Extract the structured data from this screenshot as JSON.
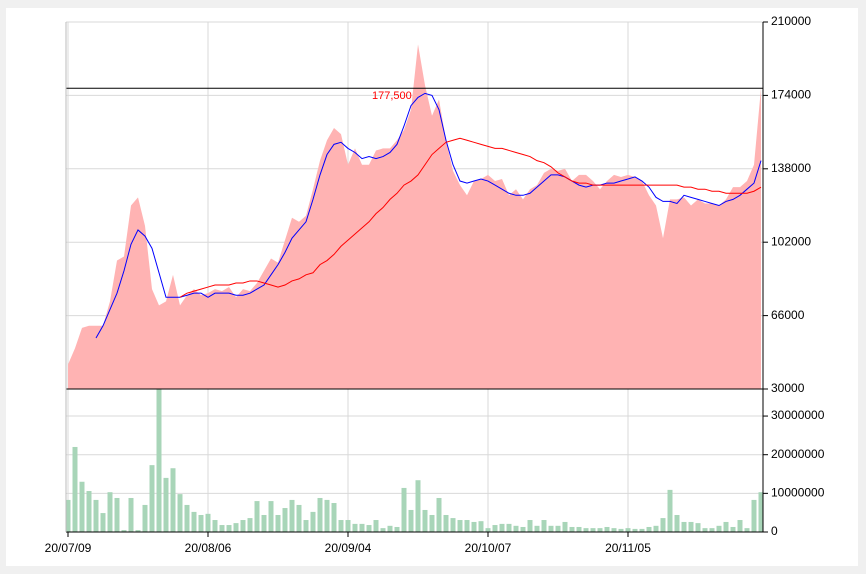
{
  "chart_data": [
    {
      "type": "area",
      "categories": [
        "20/07/09",
        null,
        null,
        null,
        null,
        null,
        null,
        null,
        null,
        null,
        null,
        null,
        null,
        null,
        null,
        null,
        null,
        null,
        null,
        null,
        "20/08/06",
        null,
        null,
        null,
        null,
        null,
        null,
        null,
        null,
        null,
        null,
        null,
        null,
        null,
        null,
        null,
        null,
        null,
        null,
        null,
        "20/09/04",
        null,
        null,
        null,
        null,
        null,
        null,
        null,
        null,
        null,
        null,
        null,
        null,
        null,
        null,
        null,
        null,
        null,
        null,
        null,
        "20/10/07",
        null,
        null,
        null,
        null,
        null,
        null,
        null,
        null,
        null,
        null,
        null,
        null,
        null,
        null,
        null,
        null,
        null,
        null,
        null,
        "20/11/05",
        null,
        null,
        null,
        null,
        null,
        null,
        null,
        null,
        null,
        null,
        null,
        null,
        null,
        null,
        null,
        null,
        null,
        null,
        null
      ],
      "series": [
        {
          "color": "#ffb3b3",
          "values": [
            42000,
            50000,
            60000,
            61000,
            61000,
            61000,
            73000,
            93000,
            95000,
            120000,
            124000,
            110000,
            79000,
            71000,
            73000,
            86000,
            71000,
            76000,
            79000,
            76000,
            77000,
            79000,
            78000,
            80000,
            75000,
            79000,
            78000,
            82000,
            88000,
            94000,
            92000,
            103000,
            114000,
            112000,
            115000,
            128000,
            142000,
            152000,
            158000,
            155000,
            140000,
            148000,
            140000,
            140000,
            147000,
            148000,
            148000,
            152000,
            157000,
            167000,
            199000,
            179000,
            164000,
            172000,
            152000,
            137000,
            130000,
            125000,
            132000,
            133000,
            135000,
            132000,
            133000,
            125000,
            128000,
            123000,
            128000,
            130000,
            136000,
            138000,
            137000,
            138000,
            132000,
            135000,
            135000,
            132000,
            128000,
            132000,
            135000,
            134000,
            135000,
            134000,
            132000,
            125000,
            120000,
            104000,
            123000,
            123000,
            124000,
            120000,
            123000,
            121000,
            121000,
            120000,
            123000,
            129000,
            129000,
            132000,
            140000,
            177500
          ]
        },
        {
          "color": "#0000ff",
          "values": [
            null,
            null,
            null,
            null,
            55000,
            61000,
            69000,
            77000,
            88000,
            101000,
            108000,
            105000,
            99000,
            87000,
            75000,
            75000,
            75000,
            76000,
            77000,
            77000,
            75000,
            77000,
            77000,
            77000,
            76000,
            76000,
            77000,
            79000,
            81000,
            86000,
            91000,
            97000,
            104000,
            108000,
            112000,
            123000,
            135000,
            145000,
            150000,
            151000,
            148000,
            146000,
            143000,
            144000,
            143000,
            144000,
            146000,
            150000,
            159000,
            169000,
            173000,
            175000,
            174000,
            167000,
            152000,
            140000,
            132000,
            131000,
            132000,
            133000,
            132000,
            130000,
            128000,
            126000,
            125000,
            125000,
            126000,
            129000,
            132000,
            135000,
            135000,
            134000,
            132000,
            130000,
            129000,
            130000,
            130000,
            131000,
            131000,
            132000,
            133000,
            134000,
            132000,
            129000,
            124000,
            122000,
            122000,
            121000,
            125000,
            124000,
            123000,
            122000,
            121000,
            120000,
            122000,
            123000,
            125000,
            128000,
            131000,
            142000
          ]
        },
        {
          "color": "#ff0000",
          "values": [
            null,
            null,
            null,
            null,
            null,
            null,
            null,
            null,
            null,
            null,
            null,
            null,
            null,
            null,
            null,
            null,
            75000,
            77000,
            78000,
            79000,
            80000,
            81000,
            81000,
            81000,
            82000,
            82000,
            83000,
            83000,
            82000,
            81000,
            80000,
            81000,
            83000,
            84000,
            86000,
            87000,
            91000,
            93000,
            96000,
            100000,
            103000,
            106000,
            109000,
            112000,
            116000,
            119000,
            123000,
            126000,
            130000,
            132000,
            135000,
            140000,
            145000,
            148000,
            151000,
            152000,
            153000,
            152000,
            151000,
            150000,
            149000,
            148000,
            148000,
            147000,
            146000,
            145000,
            144000,
            142000,
            141000,
            139000,
            136000,
            134000,
            132000,
            131000,
            131000,
            130000,
            130000,
            130000,
            130000,
            130000,
            130000,
            130000,
            130000,
            130000,
            130000,
            130000,
            130000,
            130000,
            129000,
            129000,
            128000,
            128000,
            127000,
            127000,
            126000,
            126000,
            126000,
            126000,
            127000,
            129000
          ]
        }
      ],
      "ylim": [
        30000,
        210000
      ],
      "yticks": [
        30000,
        66000,
        102000,
        138000,
        174000,
        210000
      ],
      "grid": true,
      "annotation": {
        "value": 177500,
        "label": "177,500",
        "color": "#ff0000"
      }
    },
    {
      "type": "bar",
      "color": "#a8d5b8",
      "values": [
        8300000,
        22000000,
        13000000,
        10600000,
        8300000,
        4900000,
        10300000,
        8800000,
        500000,
        8800000,
        500000,
        7000000,
        17300000,
        37000000,
        14000000,
        16500000,
        9800000,
        7000000,
        5200000,
        4400000,
        4700000,
        3100000,
        1800000,
        1800000,
        2300000,
        3100000,
        3600000,
        8000000,
        4400000,
        8000000,
        4400000,
        6200000,
        8300000,
        7000000,
        3100000,
        5200000,
        8800000,
        8300000,
        7500000,
        3100000,
        3100000,
        2100000,
        2100000,
        1800000,
        3100000,
        1000000,
        1600000,
        1300000,
        11400000,
        5700000,
        13400000,
        5700000,
        4400000,
        8800000,
        4400000,
        3600000,
        3100000,
        3100000,
        2600000,
        2800000,
        1000000,
        1800000,
        2100000,
        2100000,
        1600000,
        1300000,
        3100000,
        1600000,
        3100000,
        1600000,
        1600000,
        2600000,
        1300000,
        1300000,
        1000000,
        1000000,
        1000000,
        1300000,
        1000000,
        800000,
        1000000,
        800000,
        800000,
        1300000,
        1600000,
        3600000,
        10900000,
        4400000,
        2600000,
        2600000,
        2300000,
        1000000,
        1000000,
        1600000,
        2600000,
        1300000,
        3100000,
        1000000,
        8300000,
        10300000
      ],
      "ylim": [
        0,
        37000000
      ],
      "yticks": [
        0,
        10000000,
        20000000,
        30000000
      ],
      "grid": true
    }
  ]
}
